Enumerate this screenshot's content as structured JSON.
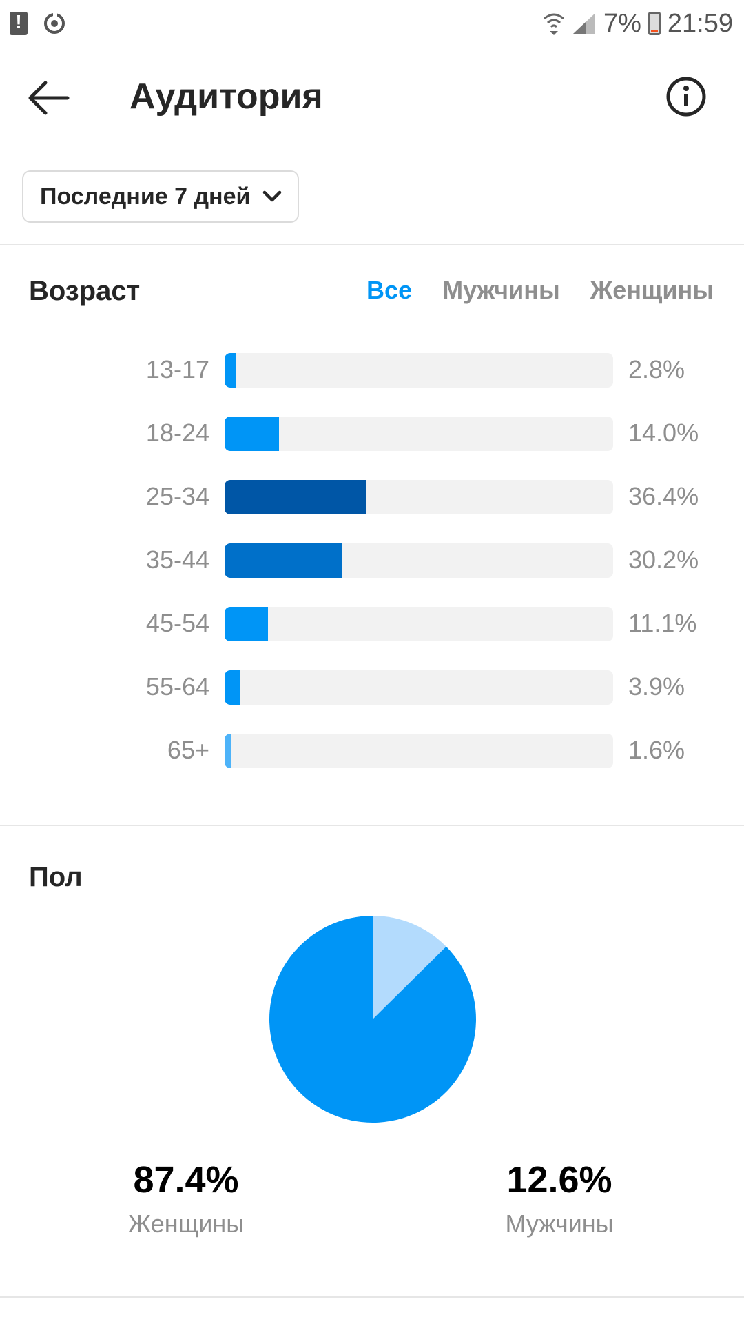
{
  "status_bar": {
    "battery": "7%",
    "time": "21:59"
  },
  "header": {
    "title": "Аудитория"
  },
  "date_filter": {
    "selected": "Последние 7 дней"
  },
  "age": {
    "title": "Возраст",
    "tabs": [
      {
        "label": "Все",
        "active": true
      },
      {
        "label": "Мужчины",
        "active": false
      },
      {
        "label": "Женщины",
        "active": false
      }
    ]
  },
  "gender": {
    "title": "Пол",
    "women": {
      "value": "87.4%",
      "label": "Женщины"
    },
    "men": {
      "value": "12.6%",
      "label": "Мужчины"
    }
  },
  "colors": {
    "accent": "#0095f6",
    "women_slice": "#0095f6",
    "men_slice": "#b3dbfd"
  },
  "chart_data": [
    {
      "type": "bar",
      "orientation": "horizontal",
      "title": "Возраст",
      "categories": [
        "13-17",
        "18-24",
        "25-34",
        "35-44",
        "45-54",
        "55-64",
        "65+"
      ],
      "values": [
        2.8,
        14.0,
        36.4,
        30.2,
        11.1,
        3.9,
        1.6
      ],
      "value_labels": [
        "2.8%",
        "14.0%",
        "36.4%",
        "30.2%",
        "11.1%",
        "3.9%",
        "1.6%"
      ],
      "colors": [
        "#0095f6",
        "#0095f6",
        "#0056a6",
        "#0070c9",
        "#0095f6",
        "#0095f6",
        "#4db3f9"
      ],
      "xlim": [
        0,
        100
      ]
    },
    {
      "type": "pie",
      "title": "Пол",
      "categories": [
        "Женщины",
        "Мужчины"
      ],
      "values": [
        87.4,
        12.6
      ],
      "colors": [
        "#0095f6",
        "#b3dbfd"
      ]
    }
  ]
}
